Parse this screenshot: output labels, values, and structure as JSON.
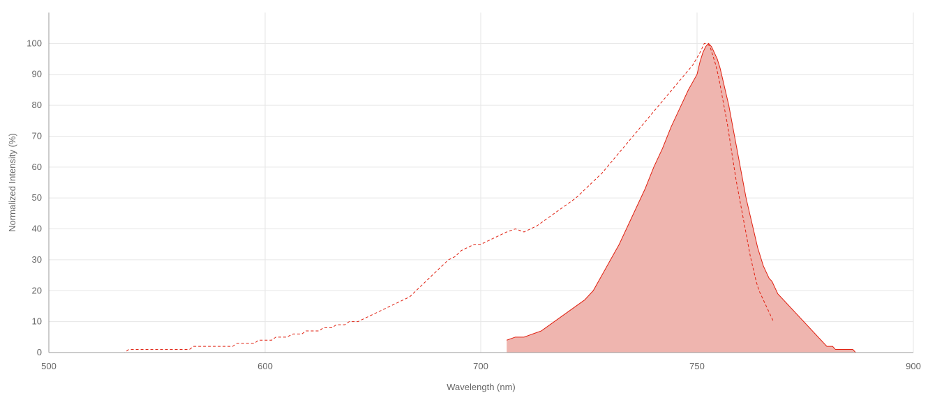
{
  "chart_data": {
    "type": "area",
    "xlabel": "Wavelength (nm)",
    "ylabel": "Normalized Intensity (%)",
    "x_ticks": [
      500,
      600,
      700,
      750,
      900
    ],
    "x_tick_labels": [
      "500",
      "600",
      "700",
      "750",
      "900"
    ],
    "y_ticks": [
      0,
      10,
      20,
      30,
      40,
      50,
      60,
      70,
      80,
      90,
      100
    ],
    "ylim": [
      0,
      110
    ],
    "grid": true,
    "colors": {
      "series": "#e02010",
      "fill": "#efb5af",
      "grid": "#e6e6e6",
      "axis": "#999999",
      "text": "#666666"
    },
    "series": [
      {
        "style": "dashed",
        "filled": false,
        "points": [
          [
            500,
            0
          ],
          [
            505,
            0
          ],
          [
            510,
            0
          ],
          [
            515,
            0
          ],
          [
            520,
            0
          ],
          [
            525,
            0
          ],
          [
            530,
            0
          ],
          [
            535,
            0
          ],
          [
            537,
            1
          ],
          [
            540,
            1
          ],
          [
            550,
            1
          ],
          [
            560,
            1
          ],
          [
            565,
            1
          ],
          [
            567,
            2
          ],
          [
            575,
            2
          ],
          [
            585,
            2
          ],
          [
            587,
            3
          ],
          [
            595,
            3
          ],
          [
            597,
            4
          ],
          [
            603,
            4
          ],
          [
            605,
            5
          ],
          [
            610,
            5
          ],
          [
            613,
            6
          ],
          [
            617,
            6
          ],
          [
            619,
            7
          ],
          [
            625,
            7
          ],
          [
            627,
            8
          ],
          [
            631,
            8
          ],
          [
            633,
            9
          ],
          [
            637,
            9
          ],
          [
            639,
            10
          ],
          [
            643,
            10
          ],
          [
            646,
            11
          ],
          [
            649,
            12
          ],
          [
            652,
            13
          ],
          [
            655,
            14
          ],
          [
            658,
            15
          ],
          [
            661,
            16
          ],
          [
            664,
            17
          ],
          [
            667,
            18
          ],
          [
            670,
            20
          ],
          [
            673,
            22
          ],
          [
            676,
            24
          ],
          [
            679,
            26
          ],
          [
            682,
            28
          ],
          [
            685,
            30
          ],
          [
            688,
            31
          ],
          [
            691,
            33
          ],
          [
            694,
            34
          ],
          [
            697,
            35
          ],
          [
            700,
            35
          ],
          [
            703,
            37
          ],
          [
            706,
            39
          ],
          [
            708,
            40
          ],
          [
            710,
            39
          ],
          [
            713,
            41
          ],
          [
            716,
            44
          ],
          [
            719,
            47
          ],
          [
            722,
            50
          ],
          [
            725,
            54
          ],
          [
            728,
            58
          ],
          [
            731,
            63
          ],
          [
            734,
            68
          ],
          [
            737,
            73
          ],
          [
            740,
            78
          ],
          [
            743,
            83
          ],
          [
            746,
            88
          ],
          [
            749,
            93
          ],
          [
            752,
            97
          ],
          [
            755,
            100
          ],
          [
            757,
            100
          ],
          [
            759,
            99
          ],
          [
            761,
            96
          ],
          [
            763,
            93
          ],
          [
            765,
            89
          ],
          [
            767,
            84
          ],
          [
            769,
            79
          ],
          [
            771,
            74
          ],
          [
            773,
            68
          ],
          [
            775,
            62
          ],
          [
            777,
            56
          ],
          [
            779,
            51
          ],
          [
            781,
            46
          ],
          [
            783,
            41
          ],
          [
            785,
            36
          ],
          [
            787,
            31
          ],
          [
            789,
            27
          ],
          [
            791,
            23
          ],
          [
            793,
            20
          ],
          [
            795,
            18
          ],
          [
            797,
            16
          ],
          [
            799,
            14
          ],
          [
            801,
            12
          ],
          [
            803,
            10
          ]
        ]
      },
      {
        "style": "solid",
        "filled": true,
        "points": [
          [
            706,
            4
          ],
          [
            708,
            5
          ],
          [
            710,
            5
          ],
          [
            712,
            6
          ],
          [
            714,
            7
          ],
          [
            716,
            9
          ],
          [
            718,
            11
          ],
          [
            720,
            13
          ],
          [
            722,
            15
          ],
          [
            724,
            17
          ],
          [
            726,
            20
          ],
          [
            728,
            25
          ],
          [
            730,
            30
          ],
          [
            732,
            35
          ],
          [
            734,
            41
          ],
          [
            736,
            47
          ],
          [
            738,
            53
          ],
          [
            740,
            60
          ],
          [
            742,
            66
          ],
          [
            744,
            73
          ],
          [
            746,
            79
          ],
          [
            748,
            85
          ],
          [
            750,
            90
          ],
          [
            752,
            94
          ],
          [
            754,
            97
          ],
          [
            756,
            99
          ],
          [
            758,
            100
          ],
          [
            760,
            99
          ],
          [
            762,
            97
          ],
          [
            764,
            95
          ],
          [
            766,
            92
          ],
          [
            768,
            88
          ],
          [
            770,
            84
          ],
          [
            772,
            80
          ],
          [
            774,
            75
          ],
          [
            776,
            70
          ],
          [
            778,
            65
          ],
          [
            780,
            60
          ],
          [
            782,
            55
          ],
          [
            784,
            50
          ],
          [
            786,
            46
          ],
          [
            788,
            42
          ],
          [
            790,
            38
          ],
          [
            792,
            34
          ],
          [
            794,
            31
          ],
          [
            796,
            28
          ],
          [
            798,
            26
          ],
          [
            800,
            24
          ],
          [
            802,
            23
          ],
          [
            804,
            21
          ],
          [
            806,
            19
          ],
          [
            808,
            18
          ],
          [
            810,
            17
          ],
          [
            812,
            16
          ],
          [
            814,
            15
          ],
          [
            816,
            14
          ],
          [
            818,
            13
          ],
          [
            820,
            12
          ],
          [
            822,
            11
          ],
          [
            824,
            10
          ],
          [
            826,
            9
          ],
          [
            828,
            8
          ],
          [
            830,
            7
          ],
          [
            832,
            6
          ],
          [
            834,
            5
          ],
          [
            836,
            4
          ],
          [
            838,
            3
          ],
          [
            840,
            2
          ],
          [
            844,
            2
          ],
          [
            846,
            1
          ],
          [
            858,
            1
          ],
          [
            860,
            0
          ],
          [
            870,
            0
          ],
          [
            880,
            0
          ],
          [
            898,
            0
          ]
        ]
      }
    ]
  }
}
